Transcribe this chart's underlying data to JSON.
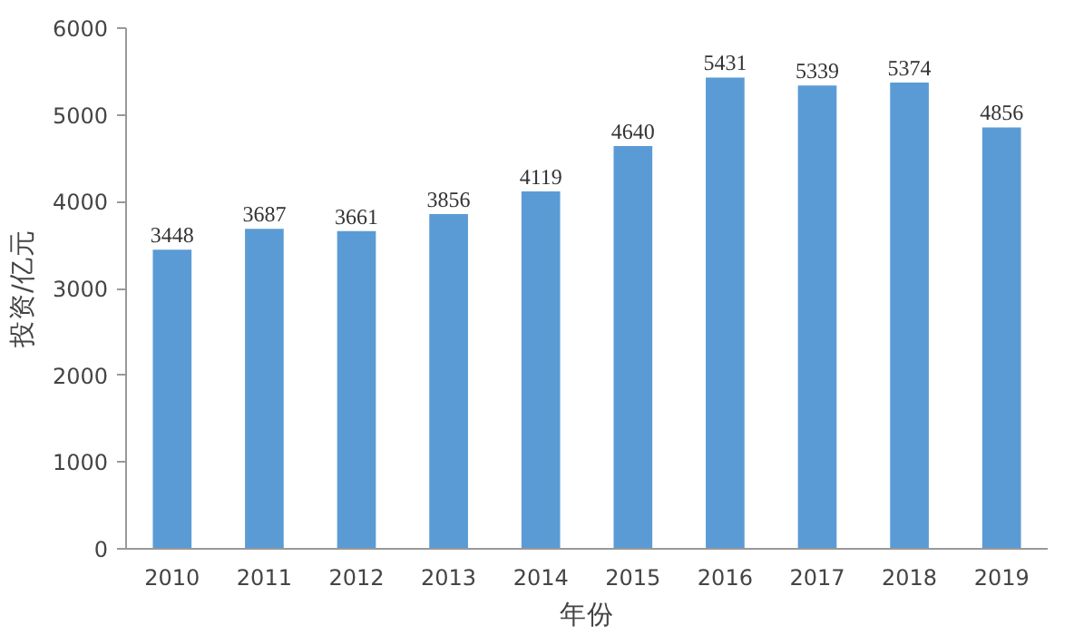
{
  "chart_data": {
    "type": "bar",
    "xlabel": "年份",
    "ylabel": "投资/亿元",
    "categories": [
      "2010",
      "2011",
      "2012",
      "2013",
      "2014",
      "2015",
      "2016",
      "2017",
      "2018",
      "2019"
    ],
    "values": [
      3448,
      3687,
      3661,
      3856,
      4119,
      4640,
      5431,
      5339,
      5374,
      4856
    ],
    "color": "#5b9bd5",
    "ylim": [
      0,
      6000
    ],
    "yticks": [
      0,
      1000,
      2000,
      3000,
      4000,
      5000,
      6000
    ],
    "grid": false,
    "data_labels": true
  }
}
